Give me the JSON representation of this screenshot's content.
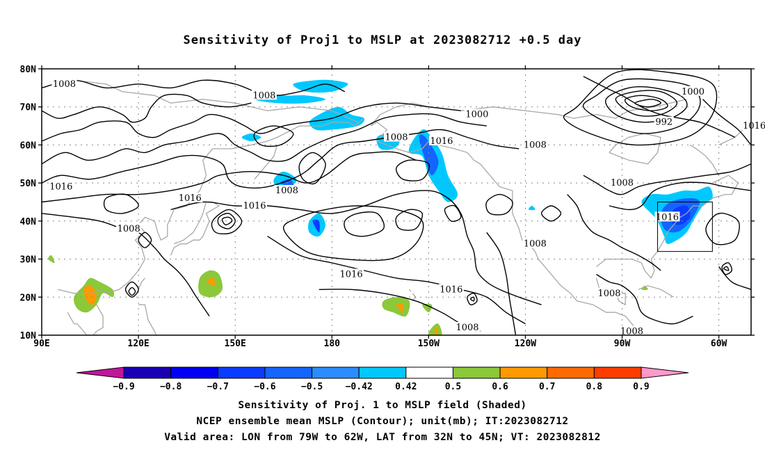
{
  "title": "Sensitivity of Proj1 to MSLP at 2023082712 +0.5 day",
  "lat_labels": [
    "80N",
    "70N",
    "60N",
    "50N",
    "40N",
    "30N",
    "20N",
    "10N"
  ],
  "lon_labels": [
    "90E",
    "120E",
    "150E",
    "180",
    "150W",
    "120W",
    "90W",
    "60W"
  ],
  "contour_labels": [
    {
      "text": "1008",
      "lon": 97,
      "lat": 76
    },
    {
      "text": "1008",
      "lon": 159,
      "lat": 73
    },
    {
      "text": "1000",
      "lon": -135,
      "lat": 68
    },
    {
      "text": "1008",
      "lon": -160,
      "lat": 62
    },
    {
      "text": "1016",
      "lon": -146,
      "lat": 61
    },
    {
      "text": "1008",
      "lon": -117,
      "lat": 60
    },
    {
      "text": "1000",
      "lon": -68,
      "lat": 74
    },
    {
      "text": "992",
      "lon": -77,
      "lat": 66
    },
    {
      "text": "1016",
      "lon": -49,
      "lat": 65
    },
    {
      "text": "1016",
      "lon": 96,
      "lat": 49
    },
    {
      "text": "1016",
      "lon": 136,
      "lat": 46
    },
    {
      "text": "1008",
      "lon": 166,
      "lat": 48
    },
    {
      "text": "1016",
      "lon": 156,
      "lat": 44
    },
    {
      "text": "1008",
      "lon": 117,
      "lat": 38
    },
    {
      "text": "1008",
      "lon": -117,
      "lat": 34
    },
    {
      "text": "1016",
      "lon": -174,
      "lat": 26
    },
    {
      "text": "1016",
      "lon": -143,
      "lat": 22
    },
    {
      "text": "1008",
      "lon": -90,
      "lat": 50
    },
    {
      "text": "1016",
      "lon": -76,
      "lat": 41
    },
    {
      "text": "1008",
      "lon": -94,
      "lat": 21
    },
    {
      "text": "1008",
      "lon": -138,
      "lat": 12
    },
    {
      "text": "1008",
      "lon": -87,
      "lat": 11
    }
  ],
  "colorbar": {
    "labels": [
      "-0.9",
      "-0.8",
      "-0.7",
      "-0.6",
      "-0.5",
      "-0.42",
      "0.42",
      "0.5",
      "0.6",
      "0.7",
      "0.8",
      "0.9"
    ],
    "colors": [
      "#c1169b",
      "#1a00b4",
      "#0000f0",
      "#0a3cff",
      "#1464ff",
      "#2a8cff",
      "#00c8ff",
      "#ffffff",
      "#8bc83a",
      "#ff9900",
      "#ff6a00",
      "#ff3c00",
      "#ff0000",
      "#ff99cc"
    ]
  },
  "caption_lines": [
    "Sensitivity of Proj. 1 to MSLP field (Shaded)",
    "NCEP ensemble mean MSLP (Contour); unit(mb); IT:2023082712",
    "Valid area: LON from 79W to 62W, LAT from 32N to 45N; VT: 2023082812"
  ],
  "valid_area": {
    "lon_from": -79,
    "lon_to": -62,
    "lat_from": 32,
    "lat_to": 45
  }
}
